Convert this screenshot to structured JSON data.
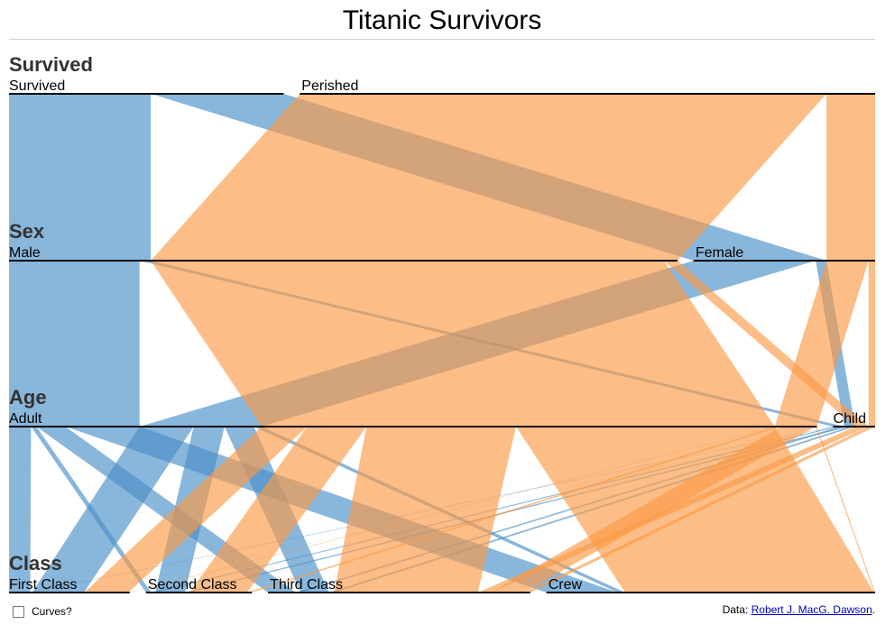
{
  "page": {
    "title": "Titanic Survivors"
  },
  "controls": {
    "curves_label": "Curves?",
    "curves_checked": false
  },
  "footer": {
    "prefix": "Data: ",
    "link_text": "Robert J. MacG. Dawson",
    "suffix": "."
  },
  "colors": {
    "survived": "#4a8fc7",
    "perished": "#fb9a45",
    "axis": "#000000"
  },
  "chart_data": {
    "type": "parallel-sets",
    "title": "Titanic Survivors",
    "dimensions": [
      {
        "name": "Survived",
        "categories": [
          "Survived",
          "Perished"
        ]
      },
      {
        "name": "Sex",
        "categories": [
          "Male",
          "Female"
        ]
      },
      {
        "name": "Age",
        "categories": [
          "Adult",
          "Child"
        ]
      },
      {
        "name": "Class",
        "categories": [
          "First Class",
          "Second Class",
          "Third Class",
          "Crew"
        ]
      }
    ],
    "color_by": "Survived",
    "records": [
      {
        "Survived": "Survived",
        "Sex": "Male",
        "Age": "Adult",
        "Class": "First Class",
        "count": 57
      },
      {
        "Survived": "Survived",
        "Sex": "Male",
        "Age": "Adult",
        "Class": "Second Class",
        "count": 14
      },
      {
        "Survived": "Survived",
        "Sex": "Male",
        "Age": "Adult",
        "Class": "Third Class",
        "count": 75
      },
      {
        "Survived": "Survived",
        "Sex": "Male",
        "Age": "Adult",
        "Class": "Crew",
        "count": 192
      },
      {
        "Survived": "Survived",
        "Sex": "Male",
        "Age": "Child",
        "Class": "First Class",
        "count": 5
      },
      {
        "Survived": "Survived",
        "Sex": "Male",
        "Age": "Child",
        "Class": "Second Class",
        "count": 11
      },
      {
        "Survived": "Survived",
        "Sex": "Male",
        "Age": "Child",
        "Class": "Third Class",
        "count": 13
      },
      {
        "Survived": "Survived",
        "Sex": "Female",
        "Age": "Adult",
        "Class": "First Class",
        "count": 140
      },
      {
        "Survived": "Survived",
        "Sex": "Female",
        "Age": "Adult",
        "Class": "Second Class",
        "count": 80
      },
      {
        "Survived": "Survived",
        "Sex": "Female",
        "Age": "Adult",
        "Class": "Third Class",
        "count": 76
      },
      {
        "Survived": "Survived",
        "Sex": "Female",
        "Age": "Adult",
        "Class": "Crew",
        "count": 20
      },
      {
        "Survived": "Survived",
        "Sex": "Female",
        "Age": "Child",
        "Class": "First Class",
        "count": 1
      },
      {
        "Survived": "Survived",
        "Sex": "Female",
        "Age": "Child",
        "Class": "Second Class",
        "count": 13
      },
      {
        "Survived": "Survived",
        "Sex": "Female",
        "Age": "Child",
        "Class": "Third Class",
        "count": 14
      },
      {
        "Survived": "Perished",
        "Sex": "Male",
        "Age": "Adult",
        "Class": "First Class",
        "count": 118
      },
      {
        "Survived": "Perished",
        "Sex": "Male",
        "Age": "Adult",
        "Class": "Second Class",
        "count": 154
      },
      {
        "Survived": "Perished",
        "Sex": "Male",
        "Age": "Adult",
        "Class": "Third Class",
        "count": 387
      },
      {
        "Survived": "Perished",
        "Sex": "Male",
        "Age": "Adult",
        "Class": "Crew",
        "count": 670
      },
      {
        "Survived": "Perished",
        "Sex": "Male",
        "Age": "Child",
        "Class": "Third Class",
        "count": 35
      },
      {
        "Survived": "Perished",
        "Sex": "Female",
        "Age": "Adult",
        "Class": "First Class",
        "count": 4
      },
      {
        "Survived": "Perished",
        "Sex": "Female",
        "Age": "Adult",
        "Class": "Second Class",
        "count": 13
      },
      {
        "Survived": "Perished",
        "Sex": "Female",
        "Age": "Adult",
        "Class": "Third Class",
        "count": 89
      },
      {
        "Survived": "Perished",
        "Sex": "Female",
        "Age": "Adult",
        "Class": "Crew",
        "count": 3
      },
      {
        "Survived": "Perished",
        "Sex": "Female",
        "Age": "Child",
        "Class": "Third Class",
        "count": 17
      }
    ]
  }
}
